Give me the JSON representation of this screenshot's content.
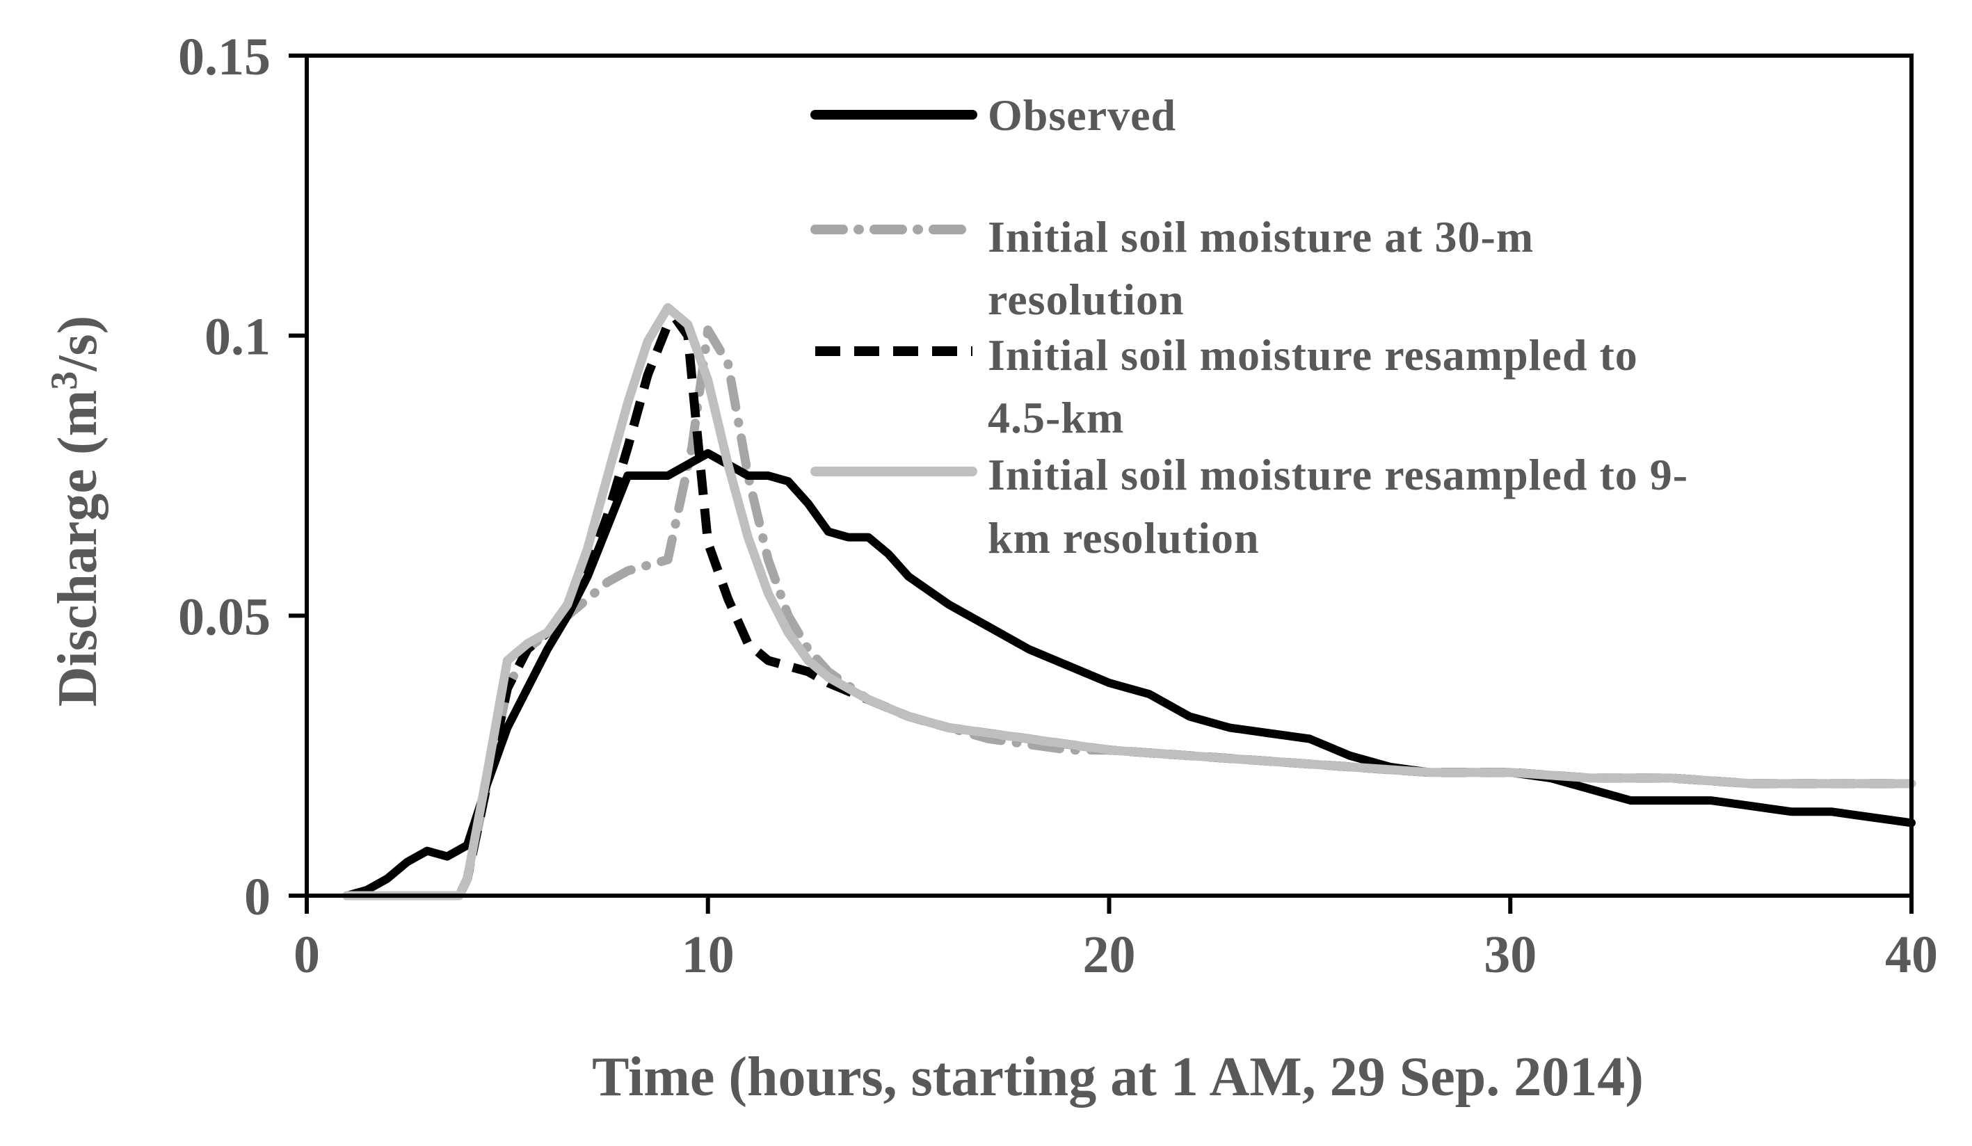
{
  "chart_data": {
    "type": "line",
    "title": "",
    "xlabel": "Time (hours, starting at 1 AM, 29 Sep. 2014)",
    "ylabel_main": "Discharge (m",
    "ylabel_sup": "3",
    "ylabel_tail": "/s)",
    "xlim": [
      0,
      40
    ],
    "ylim": [
      0,
      0.15
    ],
    "x_ticks": [
      0,
      10,
      20,
      30,
      40
    ],
    "x_tick_labels": [
      "0",
      "10",
      "20",
      "30",
      "40"
    ],
    "y_ticks": [
      0,
      0.05,
      0.1,
      0.15
    ],
    "y_tick_labels": [
      "0",
      "0.05",
      "0.1",
      "0.15"
    ],
    "grid": false,
    "legend_position": "top-right",
    "series": [
      {
        "name": "Observed",
        "legend_lines": [
          "Observed"
        ],
        "color": "#000000",
        "style": "solid",
        "x": [
          1,
          1.5,
          2,
          2.5,
          3,
          3.5,
          4,
          4.5,
          5,
          5.5,
          6,
          6.5,
          7,
          7.5,
          8,
          8.5,
          9,
          9.5,
          10,
          10.5,
          11,
          11.5,
          12,
          12.5,
          13,
          13.5,
          14,
          14.5,
          15,
          16,
          17,
          18,
          19,
          20,
          21,
          22,
          23,
          24,
          25,
          26,
          27,
          28,
          29,
          30,
          31,
          32,
          33,
          34,
          35,
          36,
          37,
          38,
          39,
          40
        ],
        "values": [
          0,
          0.001,
          0.003,
          0.006,
          0.008,
          0.007,
          0.009,
          0.02,
          0.03,
          0.037,
          0.044,
          0.05,
          0.057,
          0.066,
          0.075,
          0.075,
          0.075,
          0.077,
          0.079,
          0.077,
          0.075,
          0.075,
          0.074,
          0.07,
          0.065,
          0.064,
          0.064,
          0.061,
          0.057,
          0.052,
          0.048,
          0.044,
          0.041,
          0.038,
          0.036,
          0.032,
          0.03,
          0.029,
          0.028,
          0.025,
          0.023,
          0.022,
          0.022,
          0.022,
          0.021,
          0.019,
          0.017,
          0.017,
          0.017,
          0.016,
          0.015,
          0.015,
          0.014,
          0.013
        ]
      },
      {
        "name": "Initial soil moisture at 30-m resolution",
        "legend_lines": [
          "Initial soil moisture at 30-m",
          "resolution"
        ],
        "color": "#a6a6a6",
        "style": "dash-dot",
        "x": [
          1,
          2,
          3,
          3.8,
          4,
          4.5,
          5,
          5.5,
          6,
          6.5,
          7,
          7.5,
          8,
          8.5,
          9,
          9.3,
          9.6,
          10,
          10.5,
          11,
          11.5,
          12,
          12.5,
          13,
          14,
          15,
          16,
          17,
          18,
          19,
          20,
          22,
          24,
          26,
          28,
          30,
          32,
          34,
          36,
          38,
          40
        ],
        "values": [
          0,
          0,
          0,
          0,
          0.003,
          0.02,
          0.037,
          0.044,
          0.047,
          0.05,
          0.053,
          0.056,
          0.058,
          0.059,
          0.06,
          0.07,
          0.08,
          0.101,
          0.095,
          0.075,
          0.06,
          0.05,
          0.044,
          0.04,
          0.035,
          0.032,
          0.03,
          0.028,
          0.027,
          0.026,
          0.026,
          0.025,
          0.024,
          0.023,
          0.022,
          0.022,
          0.021,
          0.021,
          0.02,
          0.02,
          0.02
        ]
      },
      {
        "name": "Initial soil moisture resampled to 4.5-km",
        "legend_lines": [
          "Initial soil moisture resampled to",
          "4.5-km"
        ],
        "color": "#000000",
        "style": "dash",
        "x": [
          1,
          2,
          3,
          3.8,
          4,
          4.5,
          5,
          5.5,
          6,
          6.5,
          7,
          7.5,
          8,
          8.5,
          9,
          9.2,
          9.5,
          9.7,
          10,
          10.5,
          11,
          11.5,
          12,
          12.5,
          13,
          14,
          15,
          16,
          17,
          18,
          20,
          22,
          24,
          26,
          28,
          30,
          32,
          34,
          36,
          38,
          40
        ],
        "values": [
          0,
          0,
          0,
          0,
          0.003,
          0.02,
          0.037,
          0.044,
          0.047,
          0.05,
          0.058,
          0.068,
          0.08,
          0.093,
          0.102,
          0.103,
          0.1,
          0.085,
          0.063,
          0.053,
          0.045,
          0.042,
          0.041,
          0.04,
          0.038,
          0.035,
          0.032,
          0.03,
          0.029,
          0.028,
          0.026,
          0.025,
          0.024,
          0.023,
          0.022,
          0.022,
          0.021,
          0.021,
          0.02,
          0.02,
          0.02
        ]
      },
      {
        "name": "Initial soil moisture resampled to 9-km resolution",
        "legend_lines": [
          "Initial soil moisture resampled to 9-",
          "km resolution"
        ],
        "color": "#bfbfbf",
        "style": "solid",
        "x": [
          1,
          2,
          3,
          3.8,
          4,
          4.5,
          5,
          5.5,
          6,
          6.5,
          7,
          7.5,
          8,
          8.5,
          9,
          9.5,
          10,
          10.5,
          11,
          11.5,
          12,
          12.5,
          13,
          13.5,
          14,
          15,
          16,
          17,
          18,
          20,
          22,
          24,
          26,
          28,
          30,
          32,
          34,
          36,
          38,
          40
        ],
        "values": [
          0,
          0,
          0,
          0,
          0.003,
          0.022,
          0.042,
          0.045,
          0.047,
          0.052,
          0.062,
          0.075,
          0.088,
          0.099,
          0.105,
          0.102,
          0.092,
          0.077,
          0.064,
          0.054,
          0.047,
          0.042,
          0.039,
          0.037,
          0.035,
          0.032,
          0.03,
          0.029,
          0.028,
          0.026,
          0.025,
          0.024,
          0.023,
          0.022,
          0.022,
          0.021,
          0.021,
          0.02,
          0.02,
          0.02
        ]
      }
    ]
  }
}
